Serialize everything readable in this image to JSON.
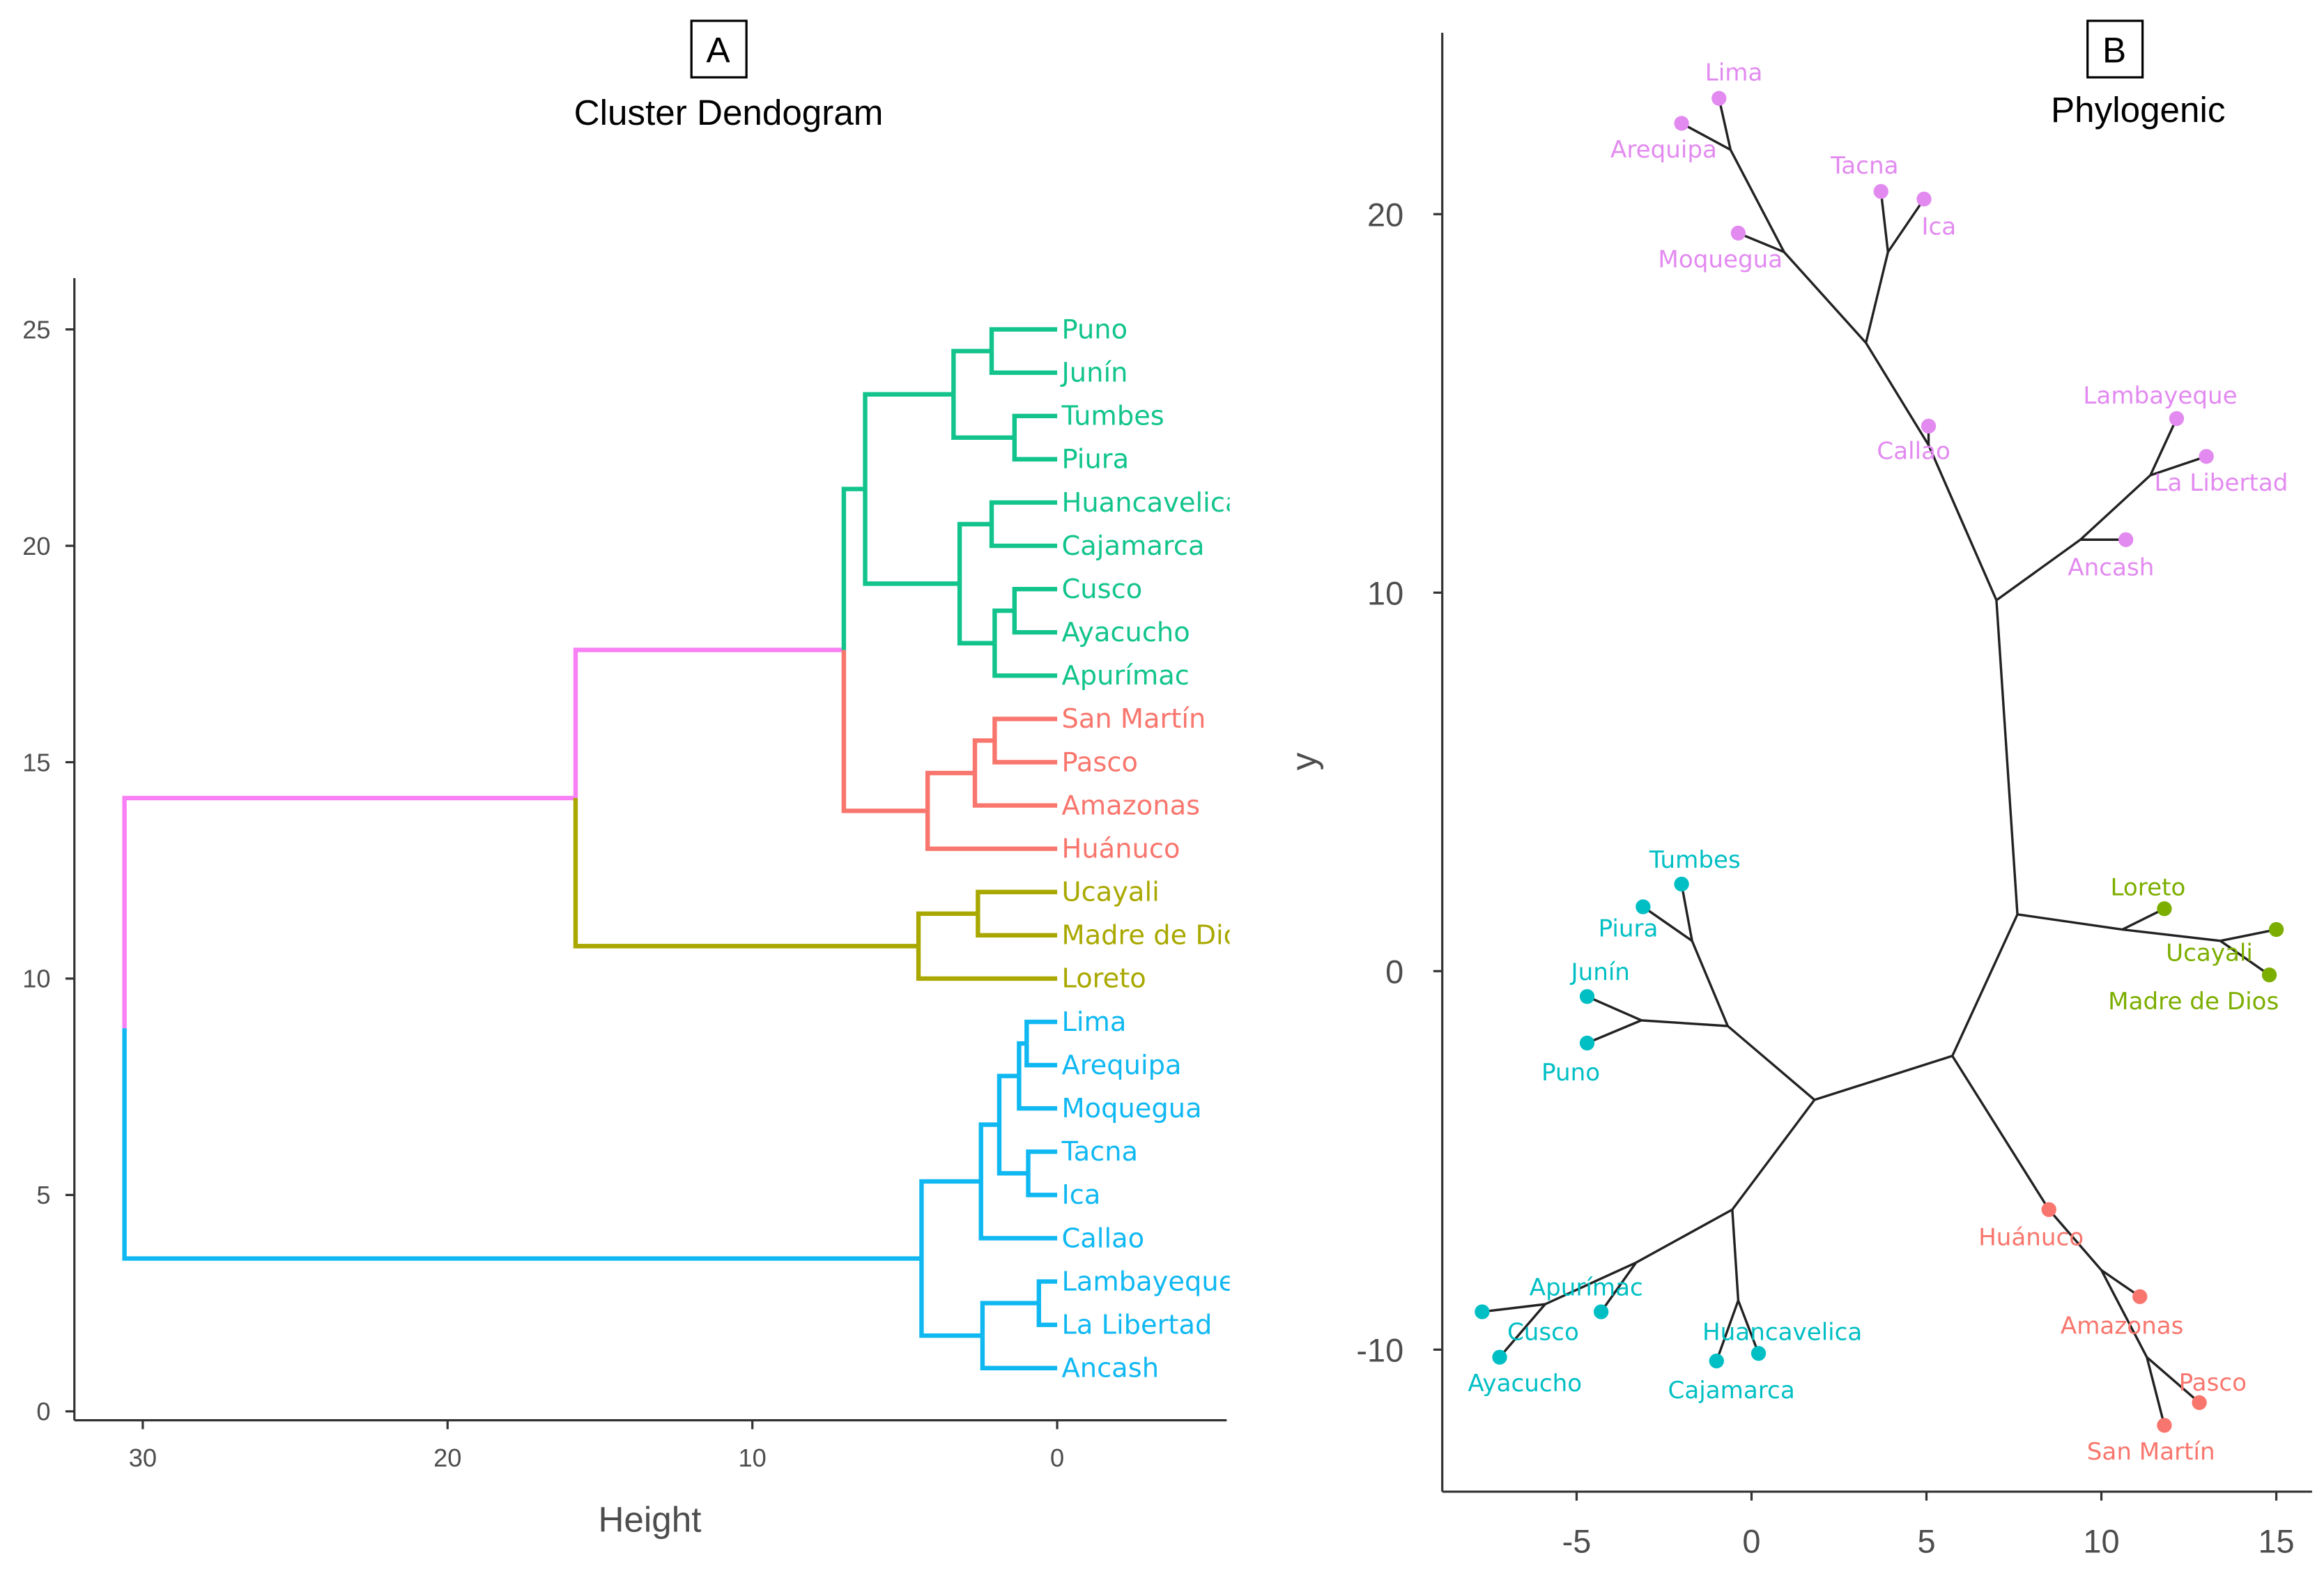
{
  "chart_data": [
    {
      "type": "dendrogram",
      "panel_label": "A",
      "title": "Cluster Dendogram",
      "xlabel": "Height",
      "ylabel": "",
      "xlim": [
        32.2,
        -5.6
      ],
      "ylim": [
        -0.3,
        26.5
      ],
      "x_ticks": [
        30,
        20,
        10,
        0
      ],
      "y_ticks": [
        0,
        5,
        10,
        15,
        20,
        25
      ],
      "group_colors": {
        "green": "#12c48c",
        "red": "#f8766d",
        "olive": "#a9a800",
        "blue": "#10b8f2",
        "mixed": "#f97ff5"
      },
      "tree": {
        "h": 30.6,
        "children": [
          {
            "h": 15.8,
            "children": [
              {
                "h": 7.0,
                "children": [
                  {
                    "h": 6.3,
                    "children": [
                      {
                        "h": 3.4,
                        "children": [
                          {
                            "h": 2.15,
                            "children": [
                              {
                                "label": "Puno",
                                "group": "green"
                              },
                              {
                                "label": "Junín",
                                "group": "green"
                              }
                            ]
                          },
                          {
                            "h": 1.4,
                            "children": [
                              {
                                "label": "Tumbes",
                                "group": "green"
                              },
                              {
                                "label": "Piura",
                                "group": "green"
                              }
                            ]
                          }
                        ]
                      },
                      {
                        "h": 3.2,
                        "children": [
                          {
                            "h": 2.15,
                            "children": [
                              {
                                "label": "Huancavelica",
                                "group": "green"
                              },
                              {
                                "label": "Cajamarca",
                                "group": "green"
                              }
                            ]
                          },
                          {
                            "h": 2.05,
                            "children": [
                              {
                                "h": 1.4,
                                "children": [
                                  {
                                    "label": "Cusco",
                                    "group": "green"
                                  },
                                  {
                                    "label": "Ayacucho",
                                    "group": "green"
                                  }
                                ]
                              },
                              {
                                "label": "Apurímac",
                                "group": "green"
                              }
                            ]
                          }
                        ]
                      }
                    ]
                  },
                  {
                    "h": 4.25,
                    "children": [
                      {
                        "h": 2.7,
                        "children": [
                          {
                            "h": 2.05,
                            "children": [
                              {
                                "label": "San Martín",
                                "group": "red"
                              },
                              {
                                "label": "Pasco",
                                "group": "red"
                              }
                            ]
                          },
                          {
                            "label": "Amazonas",
                            "group": "red"
                          }
                        ]
                      },
                      {
                        "label": "Huánuco",
                        "group": "red"
                      }
                    ]
                  }
                ]
              },
              {
                "h": 4.55,
                "children": [
                  {
                    "h": 2.6,
                    "children": [
                      {
                        "label": "Ucayali",
                        "group": "olive"
                      },
                      {
                        "label": "Madre de Dios",
                        "group": "olive"
                      }
                    ]
                  },
                  {
                    "label": "Loreto",
                    "group": "olive"
                  }
                ]
              }
            ]
          },
          {
            "h": 4.45,
            "children": [
              {
                "h": 2.5,
                "children": [
                  {
                    "h": 1.9,
                    "children": [
                      {
                        "h": 1.25,
                        "children": [
                          {
                            "h": 1.0,
                            "children": [
                              {
                                "label": "Lima",
                                "group": "blue"
                              },
                              {
                                "label": "Arequipa",
                                "group": "blue"
                              }
                            ]
                          },
                          {
                            "label": "Moquegua",
                            "group": "blue"
                          }
                        ]
                      },
                      {
                        "h": 0.95,
                        "children": [
                          {
                            "label": "Tacna",
                            "group": "blue"
                          },
                          {
                            "label": "Ica",
                            "group": "blue"
                          }
                        ]
                      }
                    ]
                  },
                  {
                    "label": "Callao",
                    "group": "blue"
                  }
                ]
              },
              {
                "h": 2.45,
                "children": [
                  {
                    "h": 0.6,
                    "children": [
                      {
                        "label": "Lambayeque",
                        "group": "blue"
                      },
                      {
                        "label": "La Libertad",
                        "group": "blue"
                      }
                    ]
                  },
                  {
                    "label": "Ancash",
                    "group": "blue"
                  }
                ]
              }
            ]
          }
        ]
      }
    },
    {
      "type": "phylogenetic-tree",
      "panel_label": "B",
      "title": "Phylogenic",
      "xlabel": "",
      "ylabel": "y",
      "xlim": [
        -8.9,
        16.0
      ],
      "ylim": [
        -13.8,
        24.7
      ],
      "x_ticks": [
        -5,
        0,
        5,
        10,
        15
      ],
      "y_ticks": [
        -10,
        0,
        10,
        20
      ],
      "group_colors": {
        "north": "#e28af0",
        "coast": "#00bfc4",
        "amazon": "#7cae00",
        "central": "#f8766d"
      },
      "edge_color": "#222222",
      "nodes": [
        {
          "id": "nUp",
          "x": 7.0,
          "y": 9.8,
          "parent": "nCT"
        },
        {
          "id": "nCT",
          "x": 7.6,
          "y": 1.5,
          "parent": "nCB"
        },
        {
          "id": "nCB",
          "x": 5.74,
          "y": -2.24,
          "parent": null
        },
        {
          "id": "nL",
          "x": 1.8,
          "y": -3.4,
          "parent": "nCB"
        },
        {
          "id": "nCal",
          "x": 5.06,
          "y": 13.9,
          "parent": "nUp"
        },
        {
          "id": "nN",
          "x": 3.27,
          "y": 16.6,
          "parent": "nCal"
        },
        {
          "id": "nLAM",
          "x": 0.93,
          "y": 19.0,
          "parent": "nN"
        },
        {
          "id": "nLA",
          "x": -0.6,
          "y": 21.7,
          "parent": "nLAM"
        },
        {
          "id": "nTI",
          "x": 3.9,
          "y": 19.0,
          "parent": "nN"
        },
        {
          "id": "nAn",
          "x": 9.4,
          "y": 11.4,
          "parent": "nUp"
        },
        {
          "id": "nLL",
          "x": 11.4,
          "y": 13.1,
          "parent": "nAn"
        },
        {
          "id": "nLo",
          "x": 10.6,
          "y": 1.1,
          "parent": "nCT"
        },
        {
          "id": "nUM",
          "x": 13.4,
          "y": 0.8,
          "parent": "nLo"
        },
        {
          "id": "nHu",
          "x": 8.5,
          "y": -6.3,
          "parent": "nCB"
        },
        {
          "id": "nAm",
          "x": 10.0,
          "y": -7.9,
          "parent": "nHu"
        },
        {
          "id": "nPS",
          "x": 11.3,
          "y": -10.2,
          "parent": "nAm"
        },
        {
          "id": "nPN",
          "x": -0.68,
          "y": -1.45,
          "parent": "nL"
        },
        {
          "id": "nTP",
          "x": -1.7,
          "y": 0.8,
          "parent": "nPN"
        },
        {
          "id": "nJP",
          "x": -3.15,
          "y": -1.3,
          "parent": "nPN"
        },
        {
          "id": "nS",
          "x": -0.55,
          "y": -6.3,
          "parent": "nL"
        },
        {
          "id": "nHC",
          "x": -0.38,
          "y": -8.7,
          "parent": "nS"
        },
        {
          "id": "nApu",
          "x": -3.3,
          "y": -7.7,
          "parent": "nS"
        },
        {
          "id": "nCA",
          "x": -5.9,
          "y": -8.8,
          "parent": "nApu"
        }
      ],
      "tips": [
        {
          "label": "Lima",
          "group": "north",
          "x": -0.93,
          "y": 23.06,
          "parent": "nLA"
        },
        {
          "label": "Arequipa",
          "group": "north",
          "x": -2.0,
          "y": 22.4,
          "parent": "nLA"
        },
        {
          "label": "Moquegua",
          "group": "north",
          "x": -0.38,
          "y": 19.5,
          "parent": "nLAM"
        },
        {
          "label": "Tacna",
          "group": "north",
          "x": 3.7,
          "y": 20.6,
          "parent": "nTI"
        },
        {
          "label": "Ica",
          "group": "north",
          "x": 4.93,
          "y": 20.4,
          "parent": "nTI"
        },
        {
          "label": "Callao",
          "group": "north",
          "x": 5.06,
          "y": 14.4,
          "parent": "nCal"
        },
        {
          "label": "Lambayeque",
          "group": "north",
          "x": 12.15,
          "y": 14.6,
          "parent": "nLL"
        },
        {
          "label": "La Libertad",
          "group": "north",
          "x": 13.0,
          "y": 13.6,
          "parent": "nLL"
        },
        {
          "label": "Ancash",
          "group": "north",
          "x": 10.7,
          "y": 11.4,
          "parent": "nAn"
        },
        {
          "label": "Tumbes",
          "group": "coast",
          "x": -2.0,
          "y": 2.3,
          "parent": "nTP"
        },
        {
          "label": "Piura",
          "group": "coast",
          "x": -3.1,
          "y": 1.7,
          "parent": "nTP"
        },
        {
          "label": "Junín",
          "group": "coast",
          "x": -4.7,
          "y": -0.67,
          "parent": "nJP"
        },
        {
          "label": "Puno",
          "group": "coast",
          "x": -4.7,
          "y": -1.9,
          "parent": "nJP"
        },
        {
          "label": "Loreto",
          "group": "amazon",
          "x": 11.8,
          "y": 1.65,
          "parent": "nLo"
        },
        {
          "label": "Ucayali",
          "group": "amazon",
          "x": 15.0,
          "y": 1.1,
          "parent": "nUM"
        },
        {
          "label": "Madre de Dios",
          "group": "amazon",
          "x": 14.8,
          "y": -0.1,
          "parent": "nUM"
        },
        {
          "label": "Huánuco",
          "group": "central",
          "x": 8.5,
          "y": -6.3,
          "parent": "nHu"
        },
        {
          "label": "Amazonas",
          "group": "central",
          "x": 11.1,
          "y": -8.6,
          "parent": "nAm"
        },
        {
          "label": "Pasco",
          "group": "central",
          "x": 12.8,
          "y": -11.4,
          "parent": "nPS"
        },
        {
          "label": "San Martín",
          "group": "central",
          "x": 11.8,
          "y": -12.0,
          "parent": "nPS"
        },
        {
          "label": "Apurímac",
          "group": "coast",
          "x": -4.3,
          "y": -9.0,
          "parent": "nApu"
        },
        {
          "label": "Cusco",
          "group": "coast",
          "x": -7.7,
          "y": -9.0,
          "parent": "nCA"
        },
        {
          "label": "Ayacucho",
          "group": "coast",
          "x": -7.2,
          "y": -10.2,
          "parent": "nCA"
        },
        {
          "label": "Huancavelica",
          "group": "coast",
          "x": 0.2,
          "y": -10.1,
          "parent": "nHC"
        },
        {
          "label": "Cajamarca",
          "group": "coast",
          "x": -1.0,
          "y": -10.3,
          "parent": "nHC"
        }
      ]
    }
  ]
}
